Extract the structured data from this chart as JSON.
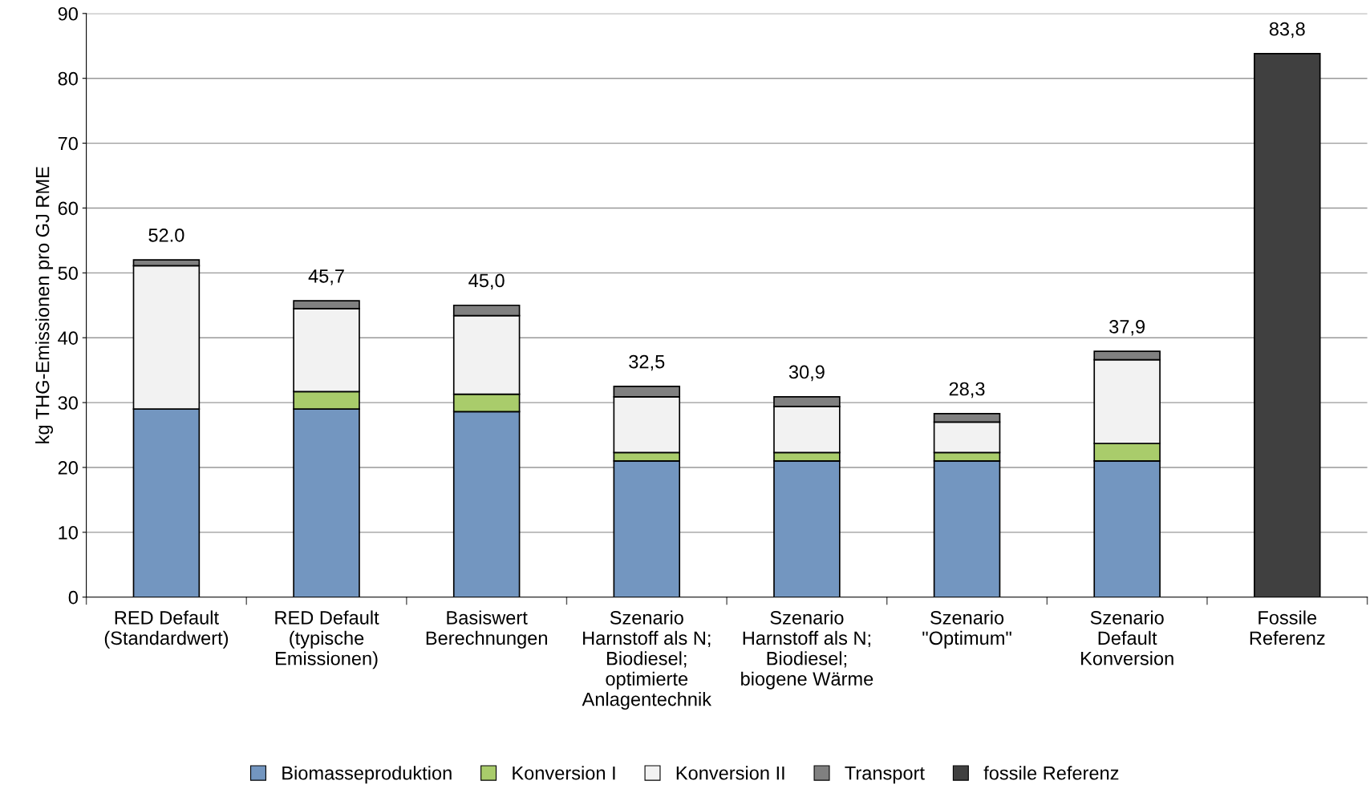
{
  "chart_data": {
    "type": "bar",
    "stacked": true,
    "ylabel": "kg THG-Emissionen pro GJ RME",
    "categories": [
      "RED Default\n(Standardwert)",
      "RED Default\n(typische\nEmissionen)",
      "Basiswert\nBerechnungen",
      "Szenario\nHarnstoff als N;\nBiodiesel;\noptimierte\nAnlagentechnik",
      "Szenario\nHarnstoff als N;\nBiodiesel;\nbiogene Wärme",
      "Szenario\n\"Optimum\"",
      "Szenario\nDefault\nKonversion",
      "Fossile\nReferenz"
    ],
    "series": [
      {
        "name": "Biomasseproduktion",
        "color": "#7396c0",
        "values": [
          29.0,
          29.0,
          28.6,
          21.0,
          21.0,
          21.0,
          21.0,
          null
        ]
      },
      {
        "name": "Konversion I",
        "color": "#a9cc6b",
        "values": [
          0,
          2.7,
          2.7,
          1.3,
          1.3,
          1.3,
          2.7,
          null
        ]
      },
      {
        "name": "Konversion II",
        "color": "#f2f2f2",
        "values": [
          22.1,
          12.8,
          12.1,
          8.6,
          7.1,
          4.7,
          12.9,
          null
        ]
      },
      {
        "name": "Transport",
        "color": "#808080",
        "values": [
          0.9,
          1.2,
          1.6,
          1.6,
          1.5,
          1.3,
          1.3,
          null
        ]
      },
      {
        "name": "fossile Referenz",
        "color": "#404040",
        "values": [
          null,
          null,
          null,
          null,
          null,
          null,
          null,
          83.8
        ]
      }
    ],
    "totals": [
      "52.0",
      "45,7",
      "45,0",
      "32,5",
      "30,9",
      "28,3",
      "37,9",
      "83,8"
    ],
    "ylim": [
      0,
      90
    ],
    "yticks": [
      0,
      10,
      20,
      30,
      40,
      50,
      60,
      70,
      80,
      90
    ],
    "grid": "y",
    "legend": "bottom"
  }
}
